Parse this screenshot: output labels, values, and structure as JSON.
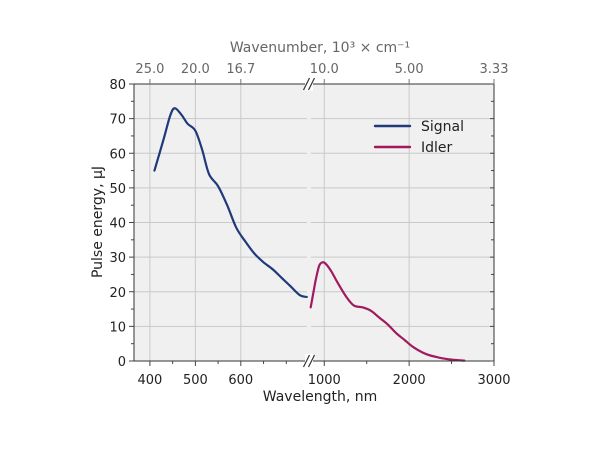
{
  "chart_data": {
    "type": "line",
    "xlabel": "Wavelength, nm",
    "ylabel": "Pulse energy, µJ",
    "x2label": "Wavenumber, 10³ × cm⁻¹",
    "ylim": [
      0,
      80
    ],
    "yticks": [
      0,
      10,
      20,
      30,
      40,
      50,
      60,
      70,
      80
    ],
    "x_axis_broken": true,
    "x_segments": [
      {
        "xlim": [
          365,
          750
        ],
        "ticks": [
          400,
          500,
          600
        ]
      },
      {
        "xlim": [
          820,
          3000
        ],
        "ticks": [
          1000,
          2000,
          3000
        ]
      }
    ],
    "x_top_ticks": [
      {
        "label": "25.0",
        "wavelength_nm": 400
      },
      {
        "label": "20.0",
        "wavelength_nm": 500
      },
      {
        "label": "16.7",
        "wavelength_nm": 600
      },
      {
        "label": "10.0",
        "wavelength_nm": 1000
      },
      {
        "label": "5.00",
        "wavelength_nm": 2000
      },
      {
        "label": "3.33",
        "wavelength_nm": 3000
      }
    ],
    "grid": true,
    "legend_position": "top-right",
    "series": [
      {
        "name": "Signal",
        "color": "#1f3a7a",
        "segment": 0,
        "x": [
          410,
          430,
          445,
          455,
          470,
          483,
          500,
          515,
          530,
          550,
          570,
          590,
          610,
          630,
          650,
          670,
          690,
          710,
          730,
          745
        ],
        "y": [
          55,
          64,
          71,
          73,
          71,
          68.5,
          66.5,
          61,
          54,
          50.5,
          45,
          38.5,
          34.5,
          31,
          28.5,
          26.5,
          24,
          21.5,
          19,
          18.5
        ]
      },
      {
        "name": "Idler",
        "color": "#a01b5e",
        "segment": 1,
        "x": [
          840,
          870,
          900,
          940,
          980,
          1020,
          1080,
          1160,
          1260,
          1350,
          1450,
          1550,
          1650,
          1750,
          1850,
          1950,
          2050,
          2200,
          2350,
          2500,
          2650
        ],
        "y": [
          15.5,
          19.5,
          23.5,
          27.5,
          28.5,
          28,
          26,
          22.5,
          18.5,
          16,
          15.5,
          14.5,
          12.5,
          10.5,
          8,
          6,
          4,
          2,
          1,
          0.4,
          0.1
        ]
      }
    ]
  }
}
